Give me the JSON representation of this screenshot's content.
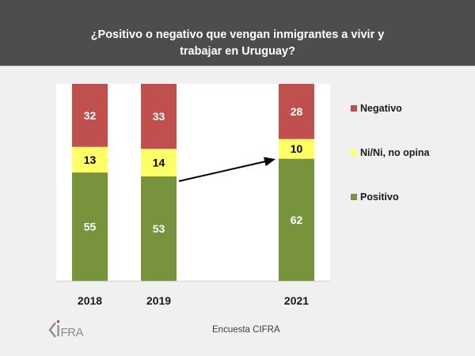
{
  "header": {
    "title_line1": "¿Positivo o negativo que vengan inmigrantes a vivir y",
    "title_line2": "trabajar en Uruguay?"
  },
  "chart_data": {
    "type": "bar",
    "stacked": true,
    "title": "¿Positivo o negativo que vengan inmigrantes a vivir y trabajar en Uruguay?",
    "xlabel": "",
    "ylabel": "",
    "ylim": [
      0,
      100
    ],
    "grid": false,
    "categories": [
      "2018",
      "2019",
      "2021"
    ],
    "series": [
      {
        "name": "Positivo",
        "color": "#77933c",
        "label_color": "#ffffff",
        "values": [
          55,
          53,
          62
        ]
      },
      {
        "name": "Ni/Ni, no opina",
        "color": "#ffff66",
        "label_color": "#000000",
        "values": [
          13,
          14,
          10
        ]
      },
      {
        "name": "Negativo",
        "color": "#c0504d",
        "label_color": "#ffffff",
        "values": [
          32,
          33,
          28
        ]
      }
    ],
    "legend": {
      "position": "right",
      "order": [
        "Negativo",
        "Ni/Ni, no opina",
        "Positivo"
      ]
    },
    "annotations": [
      {
        "type": "arrow",
        "from": "2019 Positivo top",
        "to": "2021 Positivo top"
      }
    ]
  },
  "footer": {
    "source": "Encuesta CIFRA",
    "logo_text": "CIFRA"
  }
}
